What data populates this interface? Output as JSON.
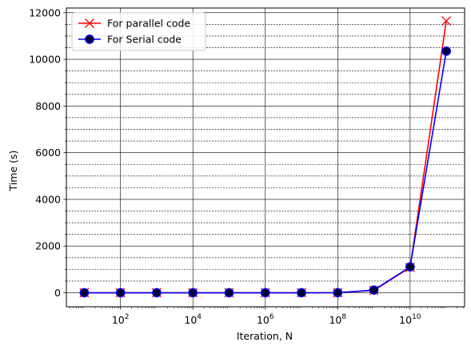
{
  "chart_data": {
    "type": "line",
    "xscale": "log",
    "xlabel": "Iteration, N",
    "ylabel": "Time (s)",
    "xlim": [
      3.2,
      320000000000.0
    ],
    "ylim": [
      -600,
      12200
    ],
    "x_ticks": [
      {
        "value": 100,
        "base": "10",
        "exp": "2"
      },
      {
        "value": 10000,
        "base": "10",
        "exp": "4"
      },
      {
        "value": 1000000,
        "base": "10",
        "exp": "6"
      },
      {
        "value": 100000000,
        "base": "10",
        "exp": "8"
      },
      {
        "value": 10000000000,
        "base": "10",
        "exp": "10"
      }
    ],
    "y_ticks": [
      0,
      2000,
      4000,
      6000,
      8000,
      10000,
      12000
    ],
    "y_tick_labels": [
      "0",
      "2000",
      "4000",
      "6000",
      "8000",
      "10000",
      "12000"
    ],
    "grid": true,
    "legend_position": "top-left",
    "x": [
      10,
      100,
      1000,
      10000,
      100000,
      1000000,
      10000000,
      100000000,
      1000000000,
      10000000000,
      100000000000
    ],
    "series": [
      {
        "name": "For parallel code",
        "color": "#ff0000",
        "marker": "x",
        "values": [
          0,
          0,
          0,
          0,
          0,
          0,
          0,
          1,
          100,
          1080,
          11650
        ]
      },
      {
        "name": "For Serial code",
        "color": "#0000ff",
        "marker": "circle",
        "values": [
          0,
          0,
          0,
          0,
          0,
          0,
          0,
          2,
          115,
          1110,
          10350
        ]
      }
    ]
  }
}
